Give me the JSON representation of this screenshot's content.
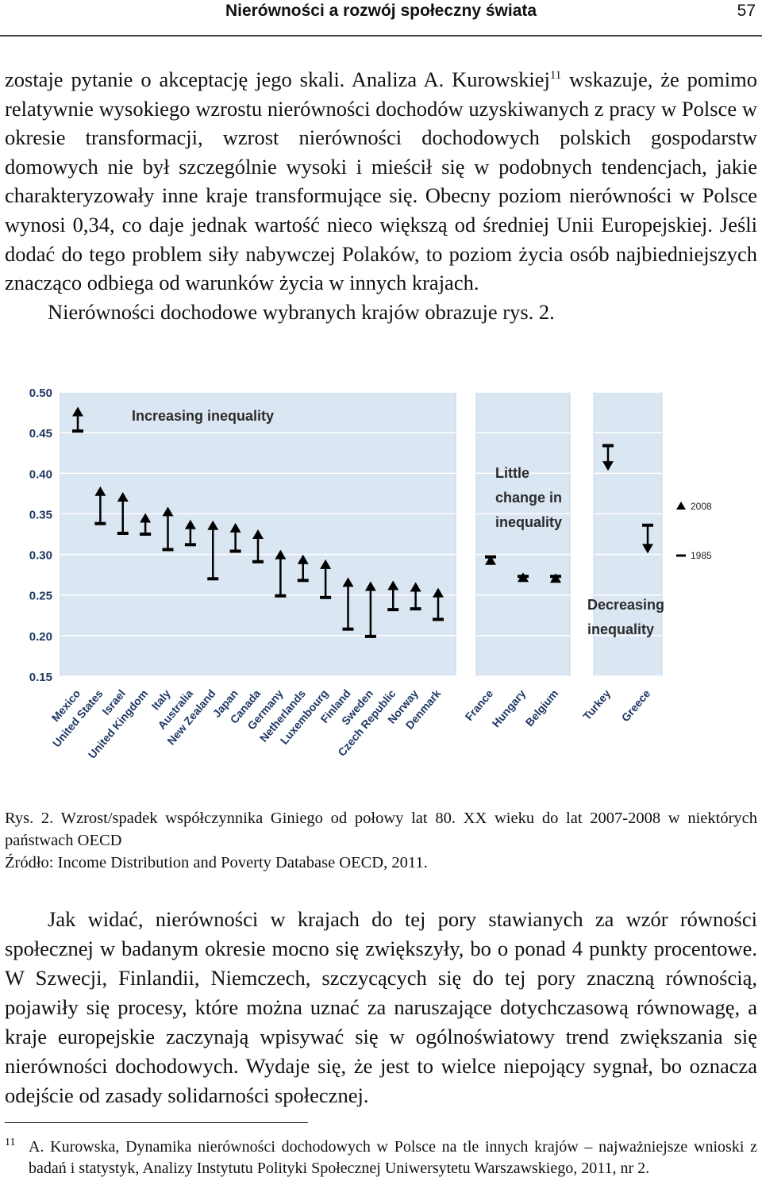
{
  "header": {
    "title": "Nierówności a rozwój społeczny świata",
    "page_number": "57"
  },
  "paragraph1": {
    "before_sup": "zostaje pytanie o akceptację jego skali. Analiza A. Kurowskiej",
    "footnote_ref": "11",
    "after_sup": " wskazuje, że pomimo relatywnie wysokiego wzrostu nierówności dochodów uzyskiwanych z pracy w Polsce w okresie transformacji, wzrost nierówności dochodowych polskich gospodarstw domowych nie był szczególnie wysoki i mieścił się w podobnych tendencjach, jakie charakteryzowały inne kraje transformujące się. Obecny poziom nierówności w Polsce wynosi 0,34, co daje jednak wartość nieco większą od średniej Unii Europejskiej. Jeśli dodać do tego problem siły nabywczej Polaków, to poziom życia osób najbiedniejszych znacząco odbiega od warunków życia w innych krajach.",
    "second_line": "Nierówności dochodowe wybranych krajów obrazuje rys. 2."
  },
  "chart_data": {
    "type": "scatter",
    "title": "",
    "xlabel": "",
    "ylabel": "",
    "ylim": [
      0.15,
      0.5
    ],
    "y_ticks": [
      "0.50",
      "0.45",
      "0.40",
      "0.35",
      "0.30",
      "0.25",
      "0.20",
      "0.15"
    ],
    "legend": {
      "labels": [
        "2008",
        "1985"
      ],
      "position": "right"
    },
    "panels": [
      {
        "label": "Increasing inequality",
        "direction": "up",
        "countries": [
          {
            "name": "Mexico",
            "y1985": 0.452,
            "y2008": 0.476
          },
          {
            "name": "United States",
            "y1985": 0.338,
            "y2008": 0.378
          },
          {
            "name": "Israel",
            "y1985": 0.326,
            "y2008": 0.371
          },
          {
            "name": "United Kingdom",
            "y1985": 0.325,
            "y2008": 0.345
          },
          {
            "name": "Italy",
            "y1985": 0.306,
            "y2008": 0.353
          },
          {
            "name": "Australia",
            "y1985": 0.312,
            "y2008": 0.337
          },
          {
            "name": "New Zealand",
            "y1985": 0.27,
            "y2008": 0.336
          },
          {
            "name": "Japan",
            "y1985": 0.304,
            "y2008": 0.333
          },
          {
            "name": "Canada",
            "y1985": 0.291,
            "y2008": 0.325
          },
          {
            "name": "Germany",
            "y1985": 0.249,
            "y2008": 0.3
          },
          {
            "name": "Netherlands",
            "y1985": 0.268,
            "y2008": 0.294
          },
          {
            "name": "Luxembourg",
            "y1985": 0.247,
            "y2008": 0.288
          },
          {
            "name": "Finland",
            "y1985": 0.208,
            "y2008": 0.266
          },
          {
            "name": "Sweden",
            "y1985": 0.199,
            "y2008": 0.261
          },
          {
            "name": "Czech Republic",
            "y1985": 0.232,
            "y2008": 0.262
          },
          {
            "name": "Norway",
            "y1985": 0.233,
            "y2008": 0.26
          },
          {
            "name": "Denmark",
            "y1985": 0.22,
            "y2008": 0.253
          }
        ]
      },
      {
        "label": "Little change in inequality",
        "direction": "flat",
        "countries": [
          {
            "name": "France",
            "y1985": 0.297,
            "y2008": 0.293
          },
          {
            "name": "Hungary",
            "y1985": 0.273,
            "y2008": 0.272
          },
          {
            "name": "Belgium",
            "y1985": 0.273,
            "y2008": 0.271
          }
        ]
      },
      {
        "label": "Decreasing inequality",
        "direction": "down",
        "countries": [
          {
            "name": "Turkey",
            "y1985": 0.434,
            "y2008": 0.409
          },
          {
            "name": "Greece",
            "y1985": 0.336,
            "y2008": 0.307
          }
        ]
      }
    ]
  },
  "caption": {
    "line1": "Rys. 2. Wzrost/spadek współczynnika Giniego od połowy lat 80. XX wieku do lat 2007-2008 w niektórych państwach OECD",
    "line2": "Źródło: Income Distribution and Poverty Database OECD, 2011."
  },
  "paragraph2": "Jak widać, nierówności w krajach do tej pory stawianych za wzór równości społecznej w badanym okresie mocno się zwiększyły, bo o ponad 4 punkty procentowe. W Szwecji, Finlandii, Niemczech, szczycących się do tej pory znaczną równością, pojawiły się procesy, które można uznać za naruszające dotychczasową równowagę, a kraje europejskie zaczynają wpisywać się w ogólnoświatowy trend zwiększania się nierówności dochodowych. Wydaje się, że jest to wielce niepojący sygnał, bo oznacza odejście od zasady solidarności społecznej.",
  "footnote": {
    "number": "11",
    "text": "A. Kurowska, Dynamika nierówności dochodowych w Polsce na tle innych krajów – najważniejsze wnioski z badań i statystyk, Analizy Instytutu Polityki Społecznej Uniwersytetu Warszawskiego, 2011, nr 2."
  },
  "colors": {
    "chart_panel_bg": "#dbe6f3",
    "chart_grid": "#ffffff",
    "chart_marker": "#000000",
    "axis_text": "#1f3864"
  }
}
